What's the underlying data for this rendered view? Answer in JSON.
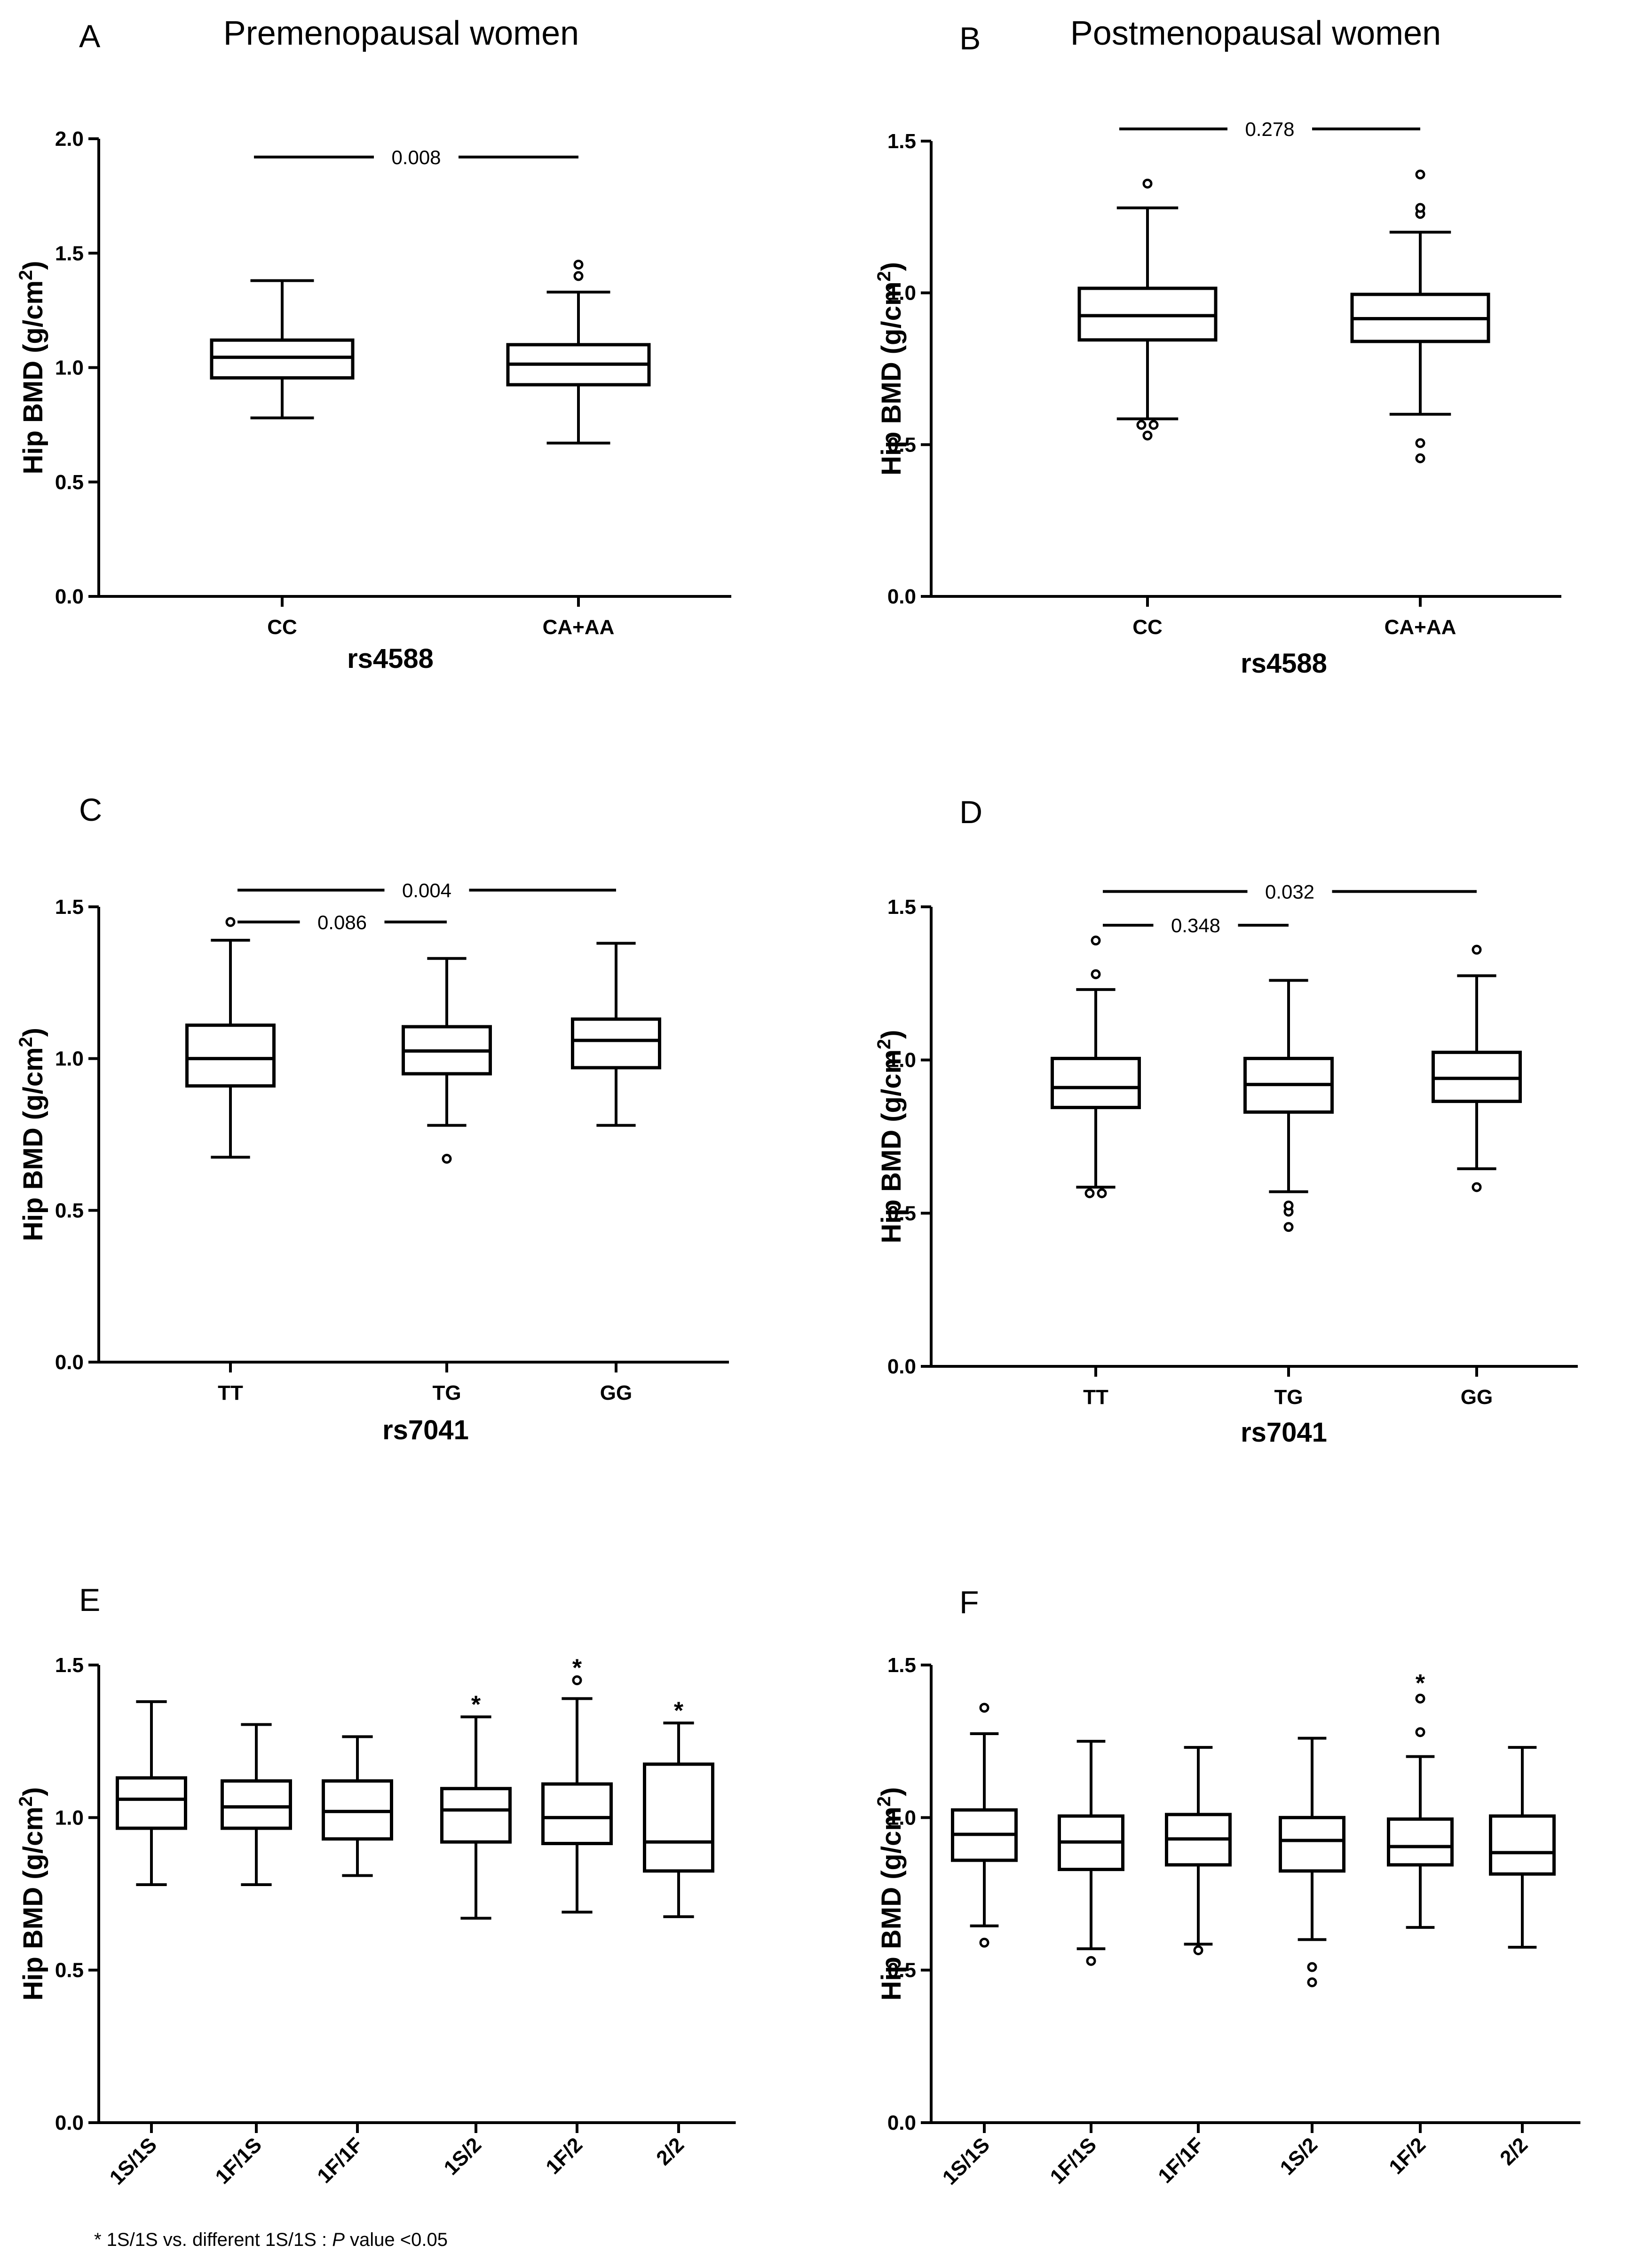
{
  "chart_data": [
    {
      "panel": "A",
      "title": "Premenopausal women",
      "type": "box",
      "ylabel": "Hip BMD (g/cm²)",
      "xlabel": "rs4588",
      "ylim": [
        0,
        2.0
      ],
      "yticks": [
        0.0,
        0.5,
        1.0,
        1.5,
        2.0
      ],
      "ytick_labels": [
        "0.0",
        "0.5",
        "1.0",
        "1.5",
        "2.0"
      ],
      "categories": [
        "CC",
        "CA+AA"
      ],
      "boxes": [
        {
          "min": 0.78,
          "q1": 0.955,
          "median": 1.045,
          "q3": 1.12,
          "max": 1.38,
          "outliers": []
        },
        {
          "min": 0.67,
          "q1": 0.925,
          "median": 1.015,
          "q3": 1.1,
          "max": 1.33,
          "outliers": [
            1.4,
            1.45
          ]
        }
      ],
      "comparisons": [
        {
          "from": 0,
          "to": 1,
          "y": 1.92,
          "label": "0.008"
        }
      ],
      "stars": []
    },
    {
      "panel": "B",
      "title": "Postmenopausal women",
      "type": "box",
      "ylabel": "Hip BMD (g/cm²)",
      "xlabel": "rs4588",
      "ylim": [
        0,
        1.5
      ],
      "yticks": [
        0.0,
        0.5,
        1.0,
        1.5
      ],
      "ytick_labels": [
        "0.0",
        "0.5",
        "1.0",
        "1.5"
      ],
      "categories": [
        "CC",
        "CA+AA"
      ],
      "boxes": [
        {
          "min": 0.585,
          "q1": 0.845,
          "median": 0.925,
          "q3": 1.015,
          "max": 1.28,
          "outliers": [
            0.53,
            0.565,
            0.565,
            1.36
          ]
        },
        {
          "min": 0.6,
          "q1": 0.84,
          "median": 0.915,
          "q3": 0.995,
          "max": 1.2,
          "outliers": [
            0.455,
            0.505,
            1.26,
            1.28,
            1.39
          ]
        }
      ],
      "comparisons": [
        {
          "from": 0,
          "to": 1,
          "y": 1.54,
          "label": "0.278"
        }
      ],
      "stars": []
    },
    {
      "panel": "C",
      "title": "",
      "type": "box",
      "ylabel": "Hip BMD (g/cm²)",
      "xlabel": "rs7041",
      "ylim": [
        0,
        1.5
      ],
      "yticks": [
        0.0,
        0.5,
        1.0,
        1.5
      ],
      "ytick_labels": [
        "0.0",
        "0.5",
        "1.0",
        "1.5"
      ],
      "categories": [
        "TT",
        "TG",
        "GG"
      ],
      "boxes": [
        {
          "min": 0.675,
          "q1": 0.91,
          "median": 1.0,
          "q3": 1.11,
          "max": 1.39,
          "outliers": [
            1.45
          ]
        },
        {
          "min": 0.78,
          "q1": 0.95,
          "median": 1.025,
          "q3": 1.105,
          "max": 1.33,
          "outliers": [
            0.67
          ]
        },
        {
          "min": 0.78,
          "q1": 0.97,
          "median": 1.06,
          "q3": 1.13,
          "max": 1.38,
          "outliers": []
        }
      ],
      "comparisons": [
        {
          "from": 0,
          "to": 2,
          "y": 1.555,
          "label": "0.004"
        },
        {
          "from": 0,
          "to": 1,
          "y": 1.45,
          "label": "0.086"
        }
      ],
      "stars": []
    },
    {
      "panel": "D",
      "title": "",
      "type": "box",
      "ylabel": "Hip BMD (g/cm²)",
      "xlabel": "rs7041",
      "ylim": [
        0,
        1.5
      ],
      "yticks": [
        0.0,
        0.5,
        1.0,
        1.5
      ],
      "ytick_labels": [
        "0.0",
        "0.5",
        "1.0",
        "1.5"
      ],
      "categories": [
        "TT",
        "TG",
        "GG"
      ],
      "boxes": [
        {
          "min": 0.585,
          "q1": 0.845,
          "median": 0.91,
          "q3": 1.005,
          "max": 1.23,
          "outliers": [
            0.565,
            0.565,
            1.28,
            1.39
          ]
        },
        {
          "min": 0.57,
          "q1": 0.83,
          "median": 0.92,
          "q3": 1.005,
          "max": 1.26,
          "outliers": [
            0.455,
            0.505,
            0.525
          ]
        },
        {
          "min": 0.645,
          "q1": 0.865,
          "median": 0.94,
          "q3": 1.025,
          "max": 1.275,
          "outliers": [
            0.585,
            1.36
          ]
        }
      ],
      "comparisons": [
        {
          "from": 0,
          "to": 2,
          "y": 1.55,
          "label": "0.032"
        },
        {
          "from": 0,
          "to": 1,
          "y": 1.44,
          "label": "0.348"
        }
      ],
      "stars": []
    },
    {
      "panel": "E",
      "title": "",
      "type": "box",
      "ylabel": "Hip BMD (g/cm²)",
      "xlabel": "",
      "ylim": [
        0,
        1.5
      ],
      "yticks": [
        0.0,
        0.5,
        1.0,
        1.5
      ],
      "ytick_labels": [
        "0.0",
        "0.5",
        "1.0",
        "1.5"
      ],
      "categories": [
        "1S/1S",
        "1F/1S",
        "1F/1F",
        "1S/2",
        "1F/2",
        "2/2"
      ],
      "boxes": [
        {
          "min": 0.78,
          "q1": 0.965,
          "median": 1.06,
          "q3": 1.13,
          "max": 1.38,
          "outliers": []
        },
        {
          "min": 0.78,
          "q1": 0.965,
          "median": 1.035,
          "q3": 1.12,
          "max": 1.305,
          "outliers": []
        },
        {
          "min": 0.81,
          "q1": 0.93,
          "median": 1.02,
          "q3": 1.12,
          "max": 1.265,
          "outliers": []
        },
        {
          "min": 0.67,
          "q1": 0.92,
          "median": 1.025,
          "q3": 1.095,
          "max": 1.33,
          "outliers": []
        },
        {
          "min": 0.69,
          "q1": 0.915,
          "median": 1.0,
          "q3": 1.11,
          "max": 1.39,
          "outliers": [
            1.45
          ]
        },
        {
          "min": 0.675,
          "q1": 0.825,
          "median": 0.92,
          "q3": 1.175,
          "max": 1.31,
          "outliers": []
        }
      ],
      "comparisons": [],
      "stars": [
        {
          "index": 3,
          "y": 1.39,
          "label": "*"
        },
        {
          "index": 4,
          "y": 1.51,
          "label": "*"
        },
        {
          "index": 5,
          "y": 1.37,
          "label": "*"
        }
      ]
    },
    {
      "panel": "F",
      "title": "",
      "type": "box",
      "ylabel": "Hip BMD (g/cm²)",
      "xlabel": "",
      "ylim": [
        0,
        1.5
      ],
      "yticks": [
        0.0,
        0.5,
        1.0,
        1.5
      ],
      "ytick_labels": [
        "0.0",
        "0.5",
        "1.0",
        "1.5"
      ],
      "categories": [
        "1S/1S",
        "1F/1S",
        "1F/1F",
        "1S/2",
        "1F/2",
        "2/2"
      ],
      "boxes": [
        {
          "min": 0.645,
          "q1": 0.86,
          "median": 0.945,
          "q3": 1.025,
          "max": 1.275,
          "outliers": [
            0.59,
            1.36
          ]
        },
        {
          "min": 0.57,
          "q1": 0.83,
          "median": 0.92,
          "q3": 1.005,
          "max": 1.25,
          "outliers": [
            0.53
          ]
        },
        {
          "min": 0.585,
          "q1": 0.845,
          "median": 0.93,
          "q3": 1.01,
          "max": 1.23,
          "outliers": [
            0.565
          ]
        },
        {
          "min": 0.6,
          "q1": 0.825,
          "median": 0.925,
          "q3": 1.0,
          "max": 1.26,
          "outliers": [
            0.46,
            0.51
          ]
        },
        {
          "min": 0.64,
          "q1": 0.845,
          "median": 0.905,
          "q3": 0.995,
          "max": 1.2,
          "outliers": [
            1.28,
            1.39
          ]
        },
        {
          "min": 0.575,
          "q1": 0.815,
          "median": 0.885,
          "q3": 1.005,
          "max": 1.23,
          "outliers": []
        }
      ],
      "comparisons": [],
      "stars": [
        {
          "index": 4,
          "y": 1.46,
          "label": "*"
        }
      ]
    }
  ],
  "footnote": {
    "prefix": "* 1S/1S vs. different 1S/1S : ",
    "italic": "P",
    "suffix": " value <0.05"
  }
}
